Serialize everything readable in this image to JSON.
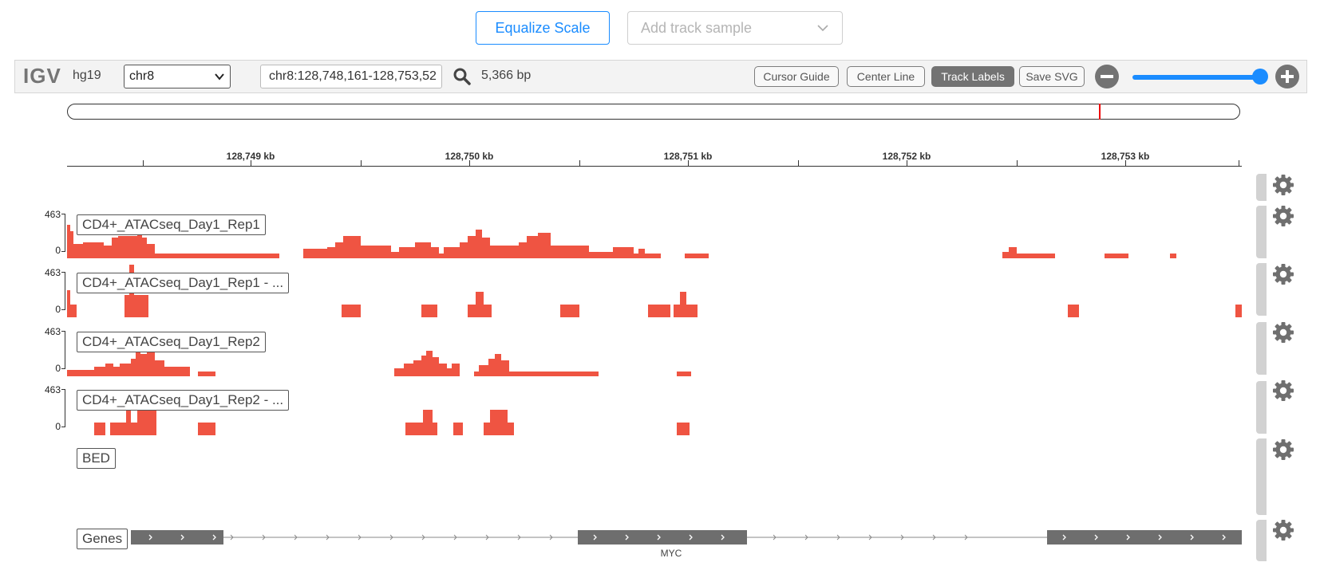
{
  "top_controls": {
    "equalize_label": "Equalize Scale",
    "add_track_placeholder": "Add track sample"
  },
  "navbar": {
    "logo": "IGV",
    "genome": "hg19",
    "chromosome": "chr8",
    "locus": "chr8:128,748,161-128,753,52",
    "width": "5,366 bp",
    "buttons": {
      "cursor_guide": "Cursor Guide",
      "center_line": "Center Line",
      "track_labels": "Track Labels",
      "save_svg": "Save SVG"
    },
    "zoom_level_fraction": 0.94
  },
  "ruler": {
    "ticks": [
      "128,749 kb",
      "128,750 kb",
      "128,751 kb",
      "128,752 kb",
      "128,753 kb"
    ]
  },
  "tracks": [
    {
      "name": "CD4+_ATACseq_Day1_Rep1",
      "scale_max": "463",
      "scale_min": "0"
    },
    {
      "name": "CD4+_ATACseq_Day1_Rep1 - ...",
      "scale_max": "463",
      "scale_min": "0"
    },
    {
      "name": "CD4+_ATACseq_Day1_Rep2",
      "scale_max": "463",
      "scale_min": "0"
    },
    {
      "name": "CD4+_ATACseq_Day1_Rep2 - ...",
      "scale_max": "463",
      "scale_min": "0"
    },
    {
      "name": "BED"
    },
    {
      "name": "Genes",
      "gene": "MYC"
    }
  ],
  "colors": {
    "signal": "#ef5442",
    "accent": "#1a8cff",
    "gene": "#6e6e6e"
  },
  "icons": {
    "search": "search-icon",
    "gear": "gear-icon",
    "zoom_out": "minus-circle-icon",
    "zoom_in": "plus-circle-icon",
    "dropdown": "chevron-down-icon"
  }
}
